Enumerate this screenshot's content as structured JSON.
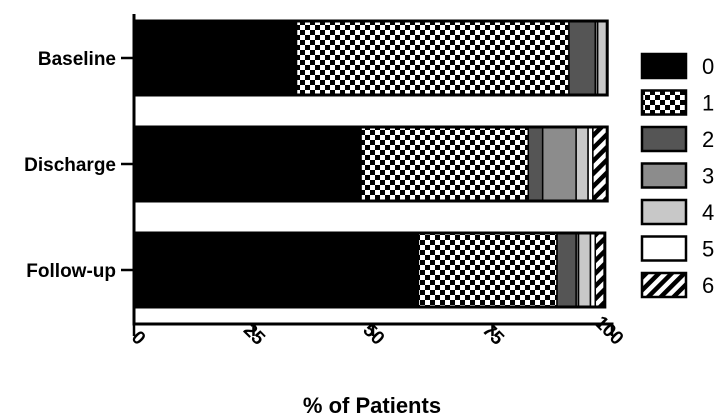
{
  "chart_data": {
    "type": "bar",
    "orientation": "horizontal",
    "stacked": true,
    "categories": [
      "Baseline",
      "Discharge",
      "Follow-up"
    ],
    "xlabel": "% of Patients",
    "ylabel": "",
    "xlim": [
      0,
      100
    ],
    "xticks": [
      0,
      25,
      50,
      75,
      100
    ],
    "grid": false,
    "legend_position": "right",
    "series": [
      {
        "name": "0",
        "values": [
          34,
          47.5,
          59.5
        ],
        "fill": "solid-black",
        "color": "#000000"
      },
      {
        "name": "1",
        "values": [
          57,
          35,
          29
        ],
        "fill": "checkerboard",
        "color": "#000000"
      },
      {
        "name": "2",
        "values": [
          5.5,
          3,
          4
        ],
        "fill": "dark-gray",
        "color": "#555555"
      },
      {
        "name": "3",
        "values": [
          0.5,
          7,
          0.5
        ],
        "fill": "medium-gray",
        "color": "#8c8c8c"
      },
      {
        "name": "4",
        "values": [
          2,
          2.5,
          2.5
        ],
        "fill": "light-gray",
        "color": "#c8c8c8"
      },
      {
        "name": "5",
        "values": [
          0,
          1,
          1
        ],
        "fill": "white",
        "color": "#ffffff"
      },
      {
        "name": "6",
        "values": [
          0,
          3,
          2
        ],
        "fill": "diagonal-hatch",
        "color": "#000000"
      }
    ]
  }
}
